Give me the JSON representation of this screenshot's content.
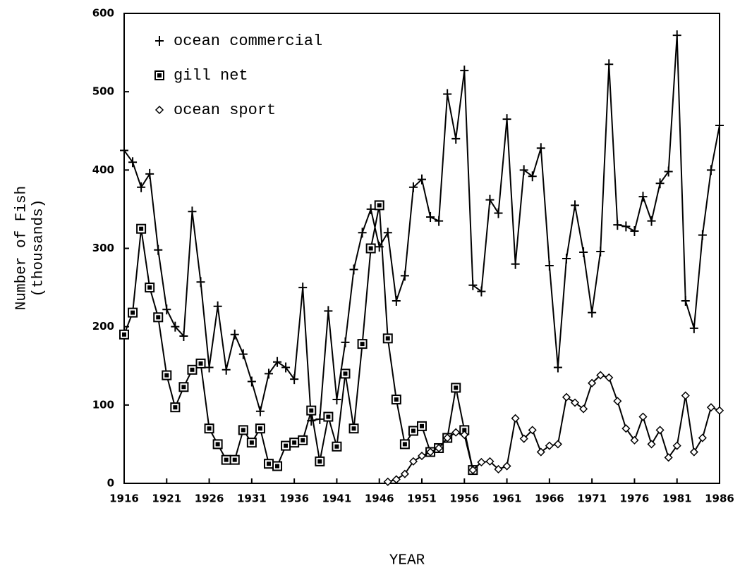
{
  "chart_data": {
    "type": "line",
    "xlabel": "YEAR",
    "ylabel": [
      "Number of Fish",
      "(thousands)"
    ],
    "x": [
      1916,
      1917,
      1918,
      1919,
      1920,
      1921,
      1922,
      1923,
      1924,
      1925,
      1926,
      1927,
      1928,
      1929,
      1930,
      1931,
      1932,
      1933,
      1934,
      1935,
      1936,
      1937,
      1938,
      1939,
      1940,
      1941,
      1942,
      1943,
      1944,
      1945,
      1946,
      1947,
      1948,
      1949,
      1950,
      1951,
      1952,
      1953,
      1954,
      1955,
      1956,
      1957,
      1958,
      1959,
      1960,
      1961,
      1962,
      1963,
      1964,
      1965,
      1966,
      1967,
      1968,
      1969,
      1970,
      1971,
      1972,
      1973,
      1974,
      1975,
      1976,
      1977,
      1978,
      1979,
      1980,
      1981,
      1982,
      1983,
      1984,
      1985,
      1986
    ],
    "xlim": [
      1916,
      1986
    ],
    "xticks": [
      1916,
      1921,
      1926,
      1931,
      1936,
      1941,
      1946,
      1951,
      1956,
      1961,
      1966,
      1971,
      1976,
      1981,
      1986
    ],
    "ylim": [
      0,
      600
    ],
    "yticks": [
      0,
      100,
      200,
      300,
      400,
      500,
      600
    ],
    "legend": "upper-left",
    "series": [
      {
        "name": "ocean commercial",
        "color": "#000000",
        "marker": "plus",
        "values": [
          425,
          410,
          378,
          395,
          298,
          222,
          200,
          188,
          347,
          257,
          148,
          226,
          145,
          190,
          165,
          130,
          92,
          140,
          155,
          148,
          133,
          250,
          80,
          82,
          220,
          107,
          180,
          273,
          320,
          350,
          302,
          320,
          233,
          265,
          378,
          388,
          340,
          335,
          497,
          440,
          527,
          253,
          245,
          362,
          345,
          465,
          280,
          400,
          392,
          428,
          278,
          148,
          287,
          355,
          295,
          218,
          296,
          535,
          330,
          328,
          322,
          366,
          335,
          383,
          398,
          572,
          233,
          198,
          317,
          400,
          457
        ]
      },
      {
        "name": "gill net",
        "color": "#000000",
        "marker": "square",
        "values": [
          190,
          218,
          325,
          250,
          212,
          138,
          97,
          123,
          145,
          153,
          70,
          50,
          30,
          30,
          68,
          52,
          70,
          25,
          22,
          48,
          52,
          55,
          93,
          28,
          85,
          47,
          140,
          70,
          178,
          300,
          355,
          185,
          107,
          50,
          67,
          73,
          40,
          45,
          58,
          122,
          68,
          17,
          null,
          null,
          null,
          null,
          null,
          null,
          null,
          null,
          null,
          null,
          null,
          null,
          null,
          null,
          null,
          null,
          null,
          null,
          null,
          null,
          null,
          null,
          null,
          null,
          null,
          null,
          null,
          null,
          null
        ]
      },
      {
        "name": "ocean sport",
        "color": "#000000",
        "marker": "diamond",
        "values": [
          null,
          null,
          null,
          null,
          null,
          null,
          null,
          null,
          null,
          null,
          null,
          null,
          null,
          null,
          null,
          null,
          null,
          null,
          null,
          null,
          null,
          null,
          null,
          null,
          null,
          null,
          null,
          null,
          null,
          null,
          null,
          2,
          5,
          12,
          28,
          35,
          40,
          45,
          58,
          65,
          62,
          17,
          27,
          28,
          18,
          22,
          83,
          57,
          68,
          40,
          48,
          50,
          110,
          103,
          95,
          128,
          138,
          135,
          105,
          70,
          55,
          85,
          50,
          68,
          33,
          48,
          112,
          40,
          58,
          97,
          93
        ]
      }
    ]
  }
}
